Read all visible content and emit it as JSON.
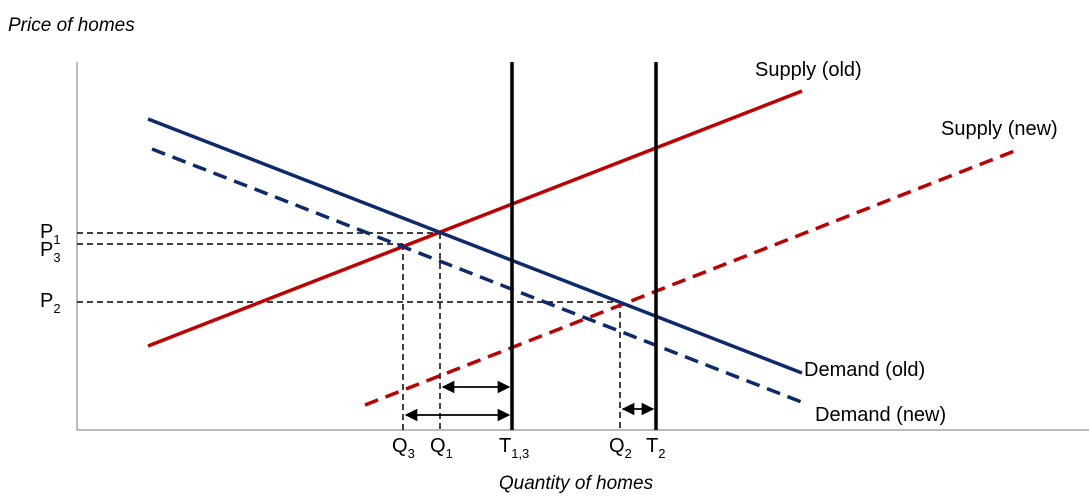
{
  "axes": {
    "y_title": "Price of homes",
    "x_title": "Quantity of homes"
  },
  "curves": {
    "supply_old": {
      "label": "Supply (old)",
      "color": "#c00000",
      "style": "solid"
    },
    "supply_new": {
      "label": "Supply (new)",
      "color": "#c00000",
      "style": "dashed"
    },
    "demand_old": {
      "label": "Demand (old)",
      "color": "#0d2a6b",
      "style": "solid"
    },
    "demand_new": {
      "label": "Demand (new)",
      "color": "#0d2a6b",
      "style": "dashed"
    }
  },
  "price_labels": [
    {
      "base": "P",
      "sub": "1"
    },
    {
      "base": "P",
      "sub": "3"
    },
    {
      "base": "P",
      "sub": "2"
    }
  ],
  "quantity_labels": [
    {
      "base": "Q",
      "sub": "3"
    },
    {
      "base": "Q",
      "sub": "1"
    },
    {
      "base": "T",
      "sub": "1,3"
    },
    {
      "base": "Q",
      "sub": "2"
    },
    {
      "base": "T",
      "sub": "2"
    }
  ],
  "colors": {
    "supply": "#c00000",
    "demand": "#0d2a6b",
    "axis": "#a6a6a6",
    "guide": "#000000",
    "vertical_line": "#000000"
  }
}
